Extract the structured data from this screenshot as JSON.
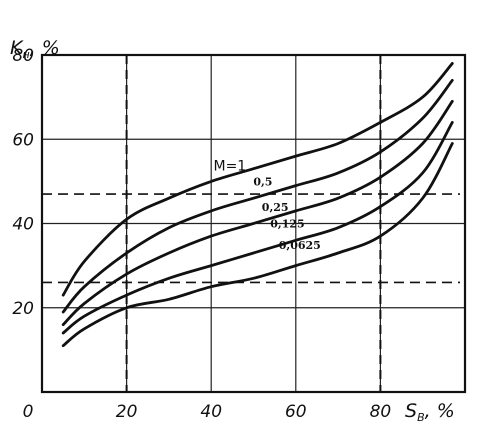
{
  "chart_data": {
    "type": "line",
    "xlabel": {
      "main": "S",
      "sub": "В",
      "unit": ", %"
    },
    "ylabel": {
      "main": "K",
      "sub": "н",
      "unit": ", %"
    },
    "xlim": [
      0,
      100
    ],
    "ylim": [
      0,
      80
    ],
    "x_ticks": [
      "0",
      "20",
      "40",
      "60",
      "80"
    ],
    "y_ticks": [
      "20",
      "40",
      "60",
      "80"
    ],
    "grid": true,
    "series": [
      {
        "name": "M=1",
        "x": [
          5,
          10,
          20,
          30,
          40,
          50,
          60,
          70,
          80,
          90,
          97
        ],
        "y": [
          23,
          31,
          41,
          46,
          50,
          53,
          56,
          59,
          64,
          70,
          78
        ]
      },
      {
        "name": "0,5",
        "x": [
          5,
          10,
          20,
          30,
          40,
          50,
          60,
          70,
          80,
          90,
          97
        ],
        "y": [
          19,
          25,
          33,
          39,
          43,
          46,
          49,
          52,
          57,
          65,
          74
        ]
      },
      {
        "name": "0,25",
        "x": [
          5,
          10,
          20,
          30,
          40,
          50,
          60,
          70,
          80,
          90,
          97
        ],
        "y": [
          16,
          21,
          28,
          33,
          37,
          40,
          43,
          46,
          51,
          59,
          69
        ]
      },
      {
        "name": "0,125",
        "x": [
          5,
          10,
          20,
          30,
          40,
          50,
          60,
          70,
          80,
          90,
          97
        ],
        "y": [
          14,
          18,
          23,
          27,
          30,
          33,
          36,
          39,
          44,
          52,
          64
        ]
      },
      {
        "name": "0,0625",
        "x": [
          5,
          10,
          20,
          30,
          40,
          50,
          60,
          70,
          80,
          90,
          97
        ],
        "y": [
          11,
          15,
          20,
          22,
          25,
          27,
          30,
          33,
          37,
          46,
          59
        ]
      }
    ],
    "reference_lines": {
      "vertical_x": [
        20,
        80
      ],
      "horizontal_y": [
        26,
        47
      ]
    }
  }
}
